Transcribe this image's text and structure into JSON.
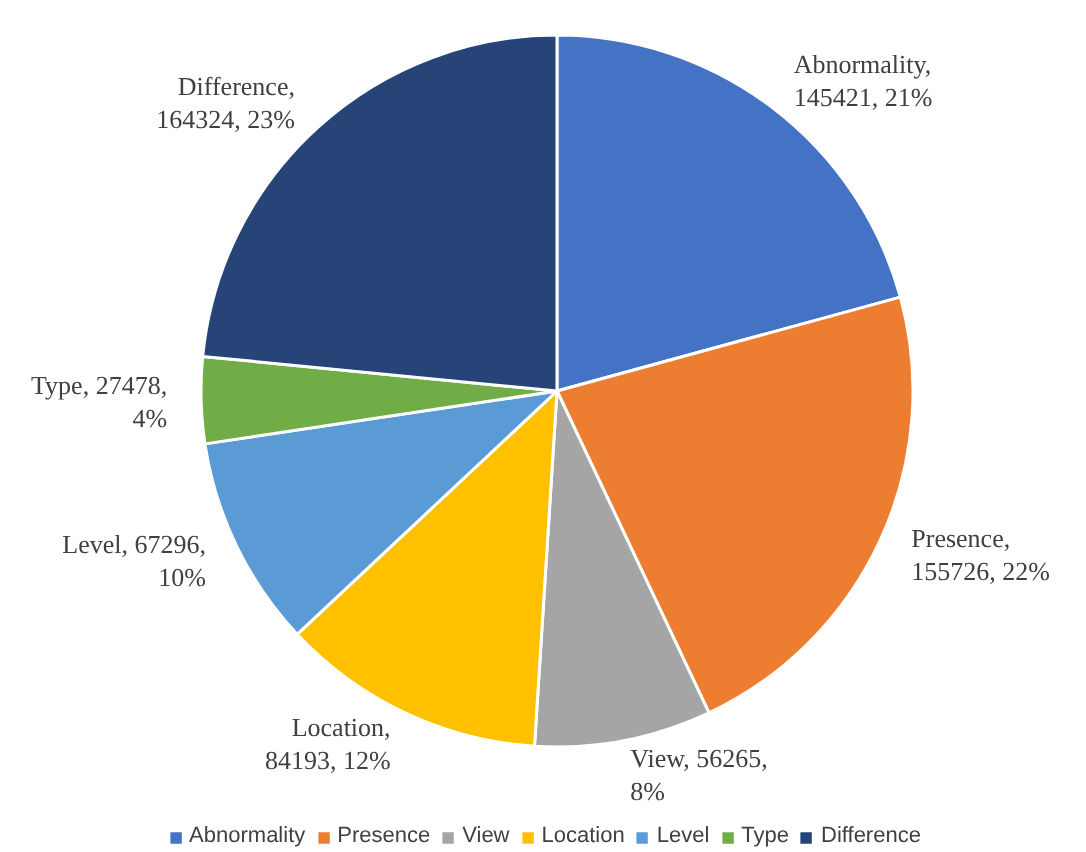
{
  "chart_data": {
    "type": "pie",
    "categories": [
      "Abnormality",
      "Presence",
      "View",
      "Location",
      "Level",
      "Type",
      "Difference"
    ],
    "values": [
      145421,
      155726,
      56265,
      84193,
      67296,
      27478,
      164324
    ],
    "colors": [
      "#4472c4",
      "#ed7d31",
      "#a5a5a5",
      "#ffc000",
      "#5b9bd5",
      "#70ad47",
      "#264478"
    ],
    "value_labels": [
      "Abnormality,\n145421, 21%",
      "Presence,\n155726, 22%",
      "View, 56265,\n8%",
      "Location,\n84193, 12%",
      "Level, 67296,\n10%",
      "Type, 27478,\n4%",
      "Difference,\n164324, 23%"
    ],
    "legend": "bottom"
  }
}
